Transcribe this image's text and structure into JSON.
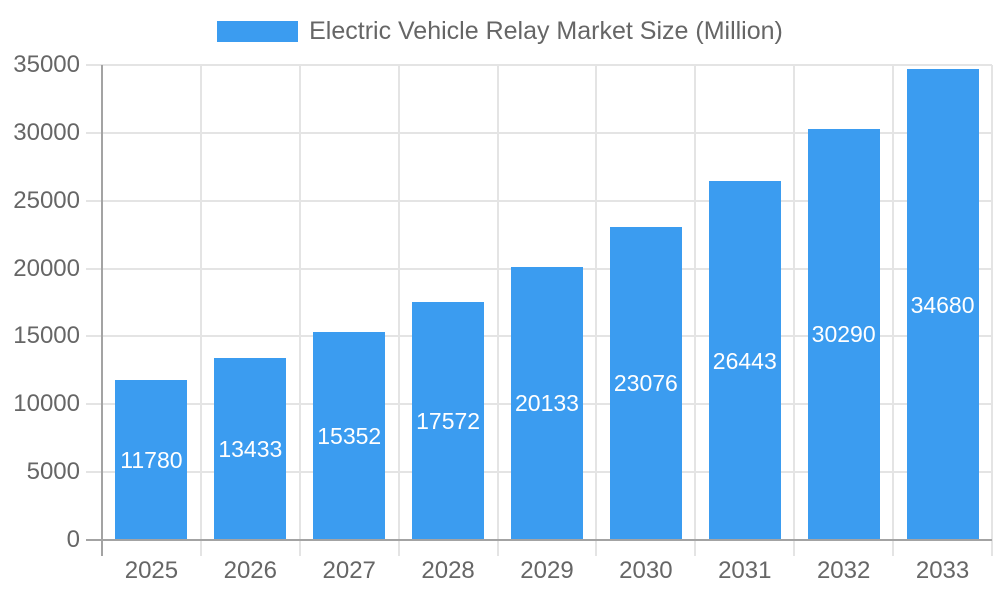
{
  "chart_data": {
    "type": "bar",
    "title": "Electric Vehicle Relay Market Size (Million)",
    "legend_position": "top",
    "categories": [
      "2025",
      "2026",
      "2027",
      "2028",
      "2029",
      "2030",
      "2031",
      "2032",
      "2033"
    ],
    "series": [
      {
        "name": "Electric Vehicle Relay Market Size (Million)",
        "values": [
          11780,
          13433,
          15352,
          17572,
          20133,
          23076,
          26443,
          30290,
          34680
        ]
      }
    ],
    "xlabel": "",
    "ylabel": "",
    "ylim": [
      0,
      35000
    ],
    "ytick_step": 5000,
    "ytick_labels": [
      "0",
      "5000",
      "10000",
      "15000",
      "20000",
      "25000",
      "30000",
      "35000"
    ],
    "grid": true,
    "value_labels_shown": true,
    "colors": {
      "bar": "#3B9CF0",
      "value_label": "#FFFFFF",
      "axis_line": "#A3A3A3",
      "gridline": "#E4E4E4",
      "tick_text": "#666666",
      "legend_text": "#666666",
      "background": "#FFFFFF"
    }
  }
}
